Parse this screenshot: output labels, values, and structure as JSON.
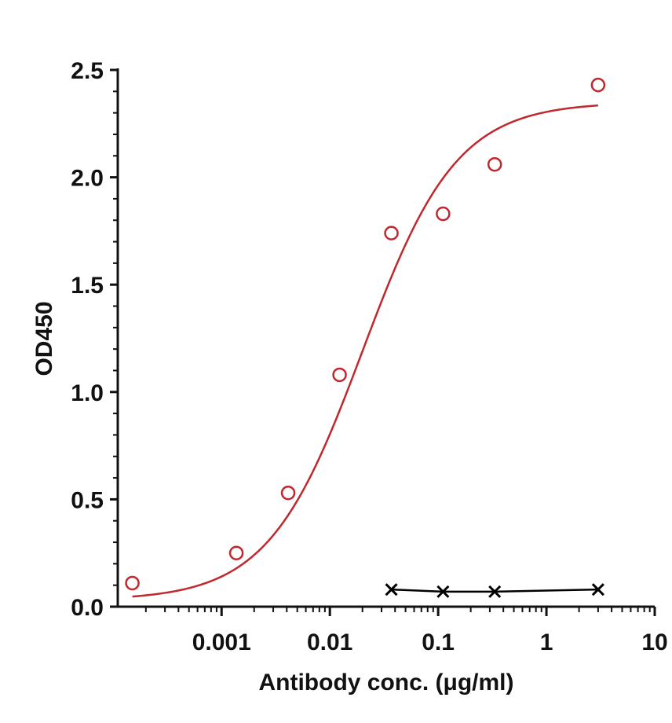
{
  "chart_data": {
    "type": "scatter",
    "title": "",
    "xlabel": "Antibody conc. (μg/ml)",
    "ylabel": "OD450",
    "x_scale": "log",
    "xlim": [
      0.00011,
      10
    ],
    "ylim": [
      0,
      2.5
    ],
    "x_ticks": [
      {
        "value": 0.001,
        "label": "0.001"
      },
      {
        "value": 0.01,
        "label": "0.01"
      },
      {
        "value": 0.1,
        "label": "0.1"
      },
      {
        "value": 1,
        "label": "1"
      },
      {
        "value": 10,
        "label": "10"
      }
    ],
    "y_ticks": [
      {
        "value": 0.0,
        "label": "0.0"
      },
      {
        "value": 0.5,
        "label": "0.5"
      },
      {
        "value": 1.0,
        "label": "1.0"
      },
      {
        "value": 1.5,
        "label": "1.5"
      },
      {
        "value": 2.0,
        "label": "2.0"
      },
      {
        "value": 2.5,
        "label": "2.5"
      }
    ],
    "grid": false,
    "legend": "none",
    "series": [
      {
        "marker": "open-circle",
        "color": "#c0282d",
        "fit": "sigmoid",
        "x": [
          0.00015,
          0.00137,
          0.00412,
          0.0123,
          0.037,
          0.111,
          0.333,
          3.0
        ],
        "y": [
          0.11,
          0.25,
          0.53,
          1.08,
          1.74,
          1.83,
          2.06,
          2.43
        ]
      },
      {
        "marker": "x",
        "color": "#000000",
        "fit": "line",
        "x": [
          0.037,
          0.111,
          0.333,
          3.0
        ],
        "y": [
          0.08,
          0.07,
          0.07,
          0.08
        ]
      }
    ]
  }
}
